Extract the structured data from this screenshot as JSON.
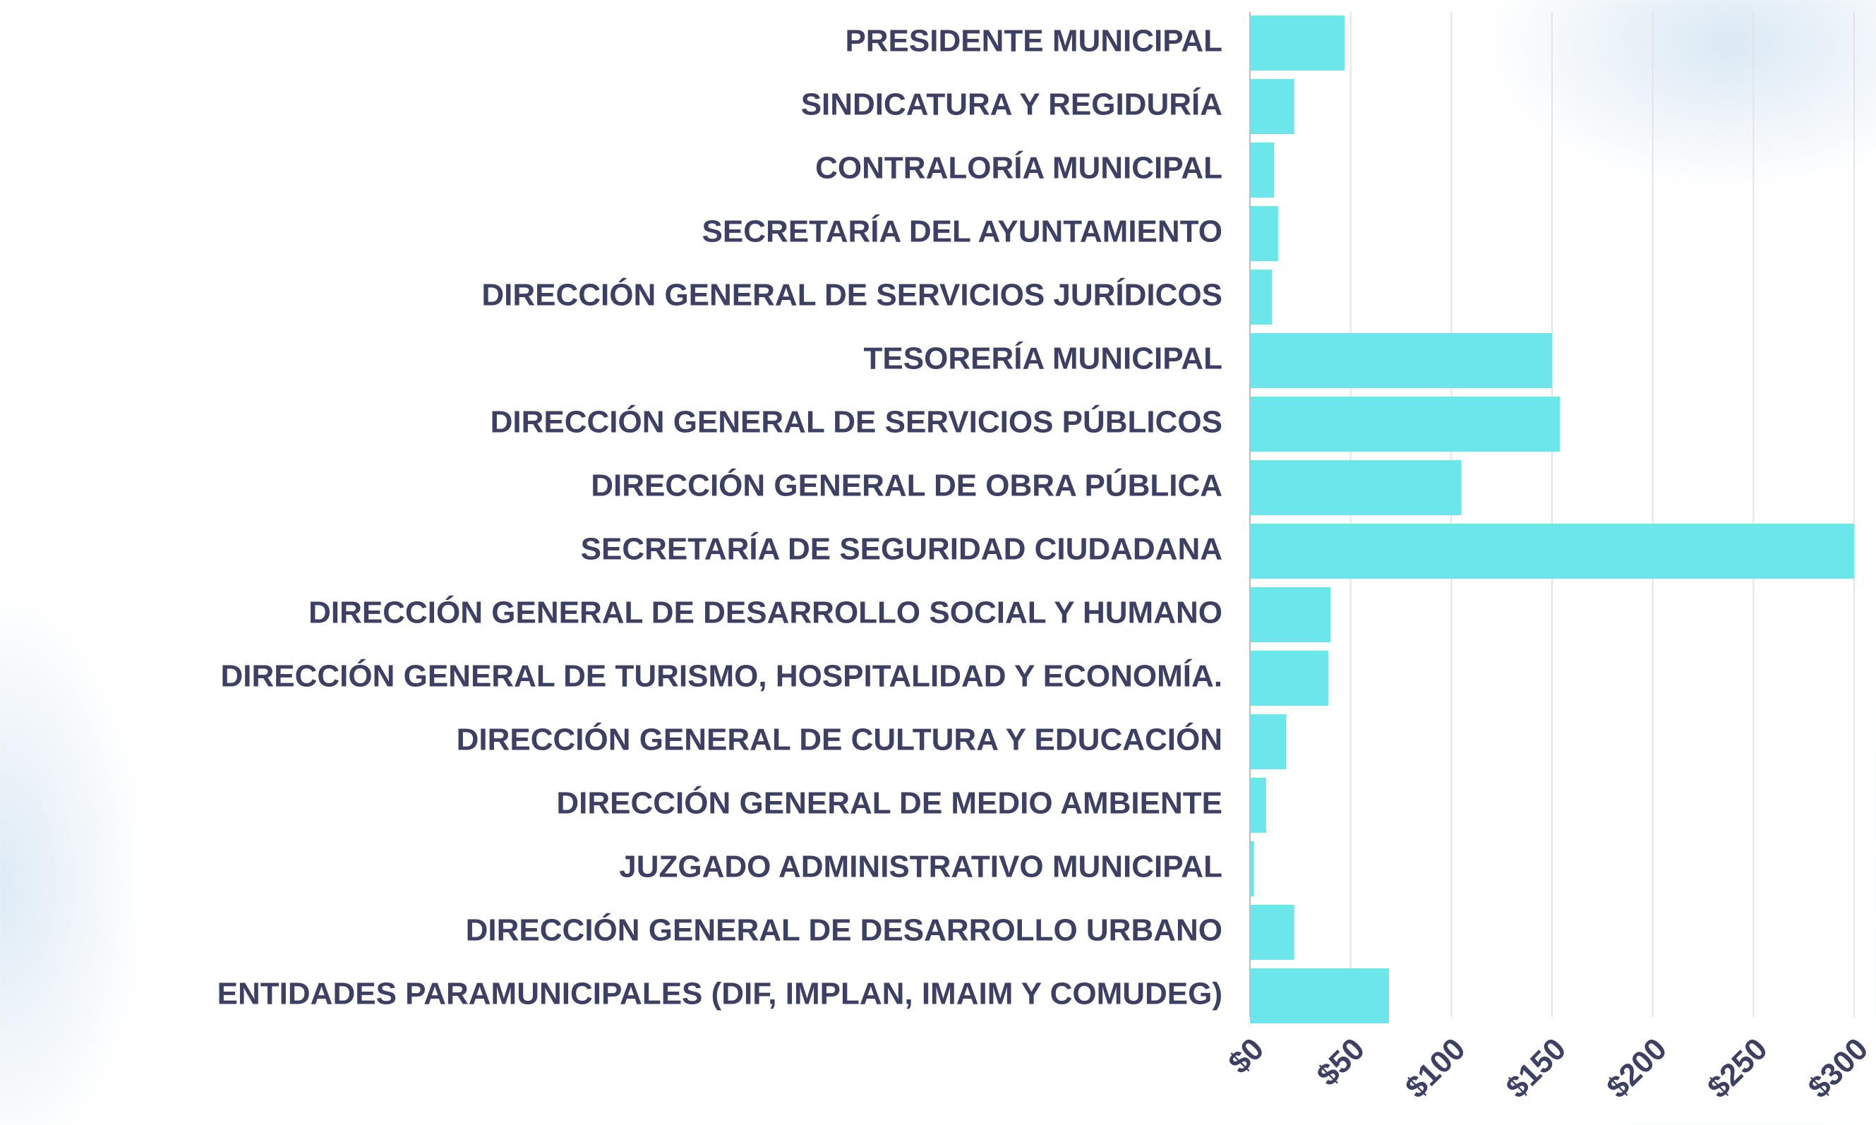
{
  "chart_data": {
    "type": "bar",
    "orientation": "horizontal",
    "categories": [
      "PRESIDENTE MUNICIPAL",
      "SINDICATURA Y REGIDURÍA",
      "CONTRALORÍA MUNICIPAL",
      "SECRETARÍA DEL AYUNTAMIENTO",
      "DIRECCIÓN GENERAL DE SERVICIOS JURÍDICOS",
      "TESORERÍA MUNICIPAL",
      "DIRECCIÓN GENERAL DE SERVICIOS PÚBLICOS",
      "DIRECCIÓN GENERAL DE OBRA PÚBLICA",
      "SECRETARÍA DE SEGURIDAD CIUDADANA",
      "DIRECCIÓN GENERAL DE DESARROLLO SOCIAL Y HUMANO",
      "DIRECCIÓN GENERAL DE TURISMO, HOSPITALIDAD Y ECONOMÍA.",
      "DIRECCIÓN GENERAL DE CULTURA Y EDUCACIÓN",
      "DIRECCIÓN GENERAL DE MEDIO AMBIENTE",
      "JUZGADO ADMINISTRATIVO MUNICIPAL",
      "DIRECCIÓN GENERAL DE DESARROLLO URBANO",
      "ENTIDADES PARAMUNICIPALES (DIF, IMPLAN, IMAIM Y COMUDEG)"
    ],
    "values": [
      47,
      22,
      12,
      14,
      11,
      150,
      154,
      105,
      300,
      40,
      39,
      18,
      8,
      2,
      22,
      69
    ],
    "color": "#6ce6e8",
    "xlim": [
      0,
      300
    ],
    "xticks": [
      {
        "value": 0,
        "label": "$0"
      },
      {
        "value": 50,
        "label": "$50"
      },
      {
        "value": 100,
        "label": "$100"
      },
      {
        "value": 150,
        "label": "$150"
      },
      {
        "value": 200,
        "label": "$200"
      },
      {
        "value": 250,
        "label": "$250"
      },
      {
        "value": 300,
        "label": "$300"
      }
    ],
    "grid": true
  }
}
